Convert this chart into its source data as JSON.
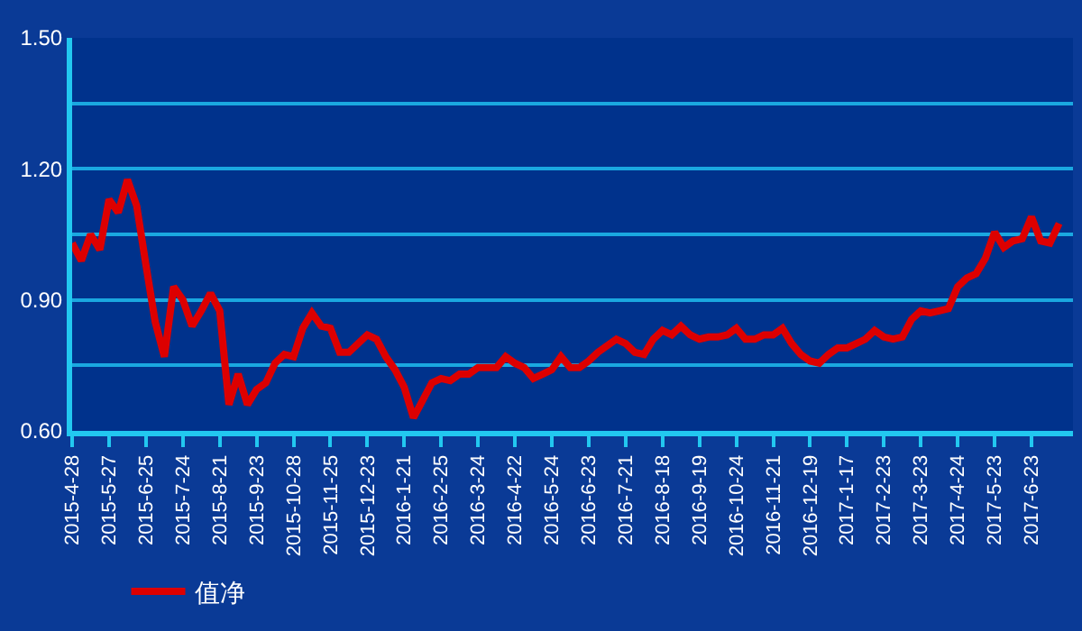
{
  "chart_data": {
    "type": "line",
    "categories": [
      "2015-4-28",
      null,
      null,
      null,
      "2015-5-27",
      null,
      null,
      null,
      "2015-6-25",
      null,
      null,
      null,
      "2015-7-24",
      null,
      null,
      null,
      "2015-8-21",
      null,
      null,
      null,
      "2015-9-23",
      null,
      null,
      null,
      "2015-10-28",
      null,
      null,
      null,
      "2015-11-25",
      null,
      null,
      null,
      "2015-12-23",
      null,
      null,
      null,
      "2016-1-21",
      null,
      null,
      null,
      "2016-2-25",
      null,
      null,
      null,
      "2016-3-24",
      null,
      null,
      null,
      "2016-4-22",
      null,
      null,
      null,
      "2016-5-24",
      null,
      null,
      null,
      "2016-6-23",
      null,
      null,
      null,
      "2016-7-21",
      null,
      null,
      null,
      "2016-8-18",
      null,
      null,
      null,
      "2016-9-19",
      null,
      null,
      null,
      "2016-10-24",
      null,
      null,
      null,
      "2016-11-21",
      null,
      null,
      null,
      "2016-12-19",
      null,
      null,
      null,
      "2017-1-17",
      null,
      null,
      null,
      "2017-2-23",
      null,
      null,
      null,
      "2017-3-23",
      null,
      null,
      null,
      "2017-4-24",
      null,
      null,
      null,
      "2017-5-23",
      null,
      null,
      null,
      "2017-6-23",
      null,
      null,
      null
    ],
    "series": [
      {
        "name": "值净",
        "color": "#dd0000",
        "values": [
          1.03,
          0.99,
          1.05,
          1.015,
          1.13,
          1.1,
          1.175,
          1.115,
          0.98,
          0.85,
          0.77,
          0.93,
          0.9,
          0.84,
          0.875,
          0.915,
          0.875,
          0.66,
          0.73,
          0.66,
          0.695,
          0.71,
          0.755,
          0.775,
          0.77,
          0.835,
          0.87,
          0.84,
          0.835,
          0.78,
          0.78,
          0.8,
          0.82,
          0.81,
          0.77,
          0.74,
          0.7,
          0.63,
          0.67,
          0.71,
          0.72,
          0.715,
          0.73,
          0.73,
          0.745,
          0.745,
          0.745,
          0.77,
          0.755,
          0.745,
          0.72,
          0.73,
          0.74,
          0.77,
          0.745,
          0.745,
          0.76,
          0.78,
          0.795,
          0.81,
          0.8,
          0.78,
          0.775,
          0.81,
          0.83,
          0.82,
          0.84,
          0.82,
          0.81,
          0.815,
          0.815,
          0.82,
          0.835,
          0.81,
          0.81,
          0.82,
          0.82,
          0.835,
          0.8,
          0.775,
          0.76,
          0.755,
          0.775,
          0.79,
          0.79,
          0.8,
          0.81,
          0.83,
          0.815,
          0.81,
          0.815,
          0.855,
          0.875,
          0.87,
          0.875,
          0.88,
          0.93,
          0.95,
          0.96,
          0.995,
          1.055,
          1.02,
          1.035,
          1.04,
          1.09,
          1.035,
          1.03,
          1.075
        ]
      }
    ],
    "ylim": [
      0.6,
      1.5
    ],
    "yticks": [
      {
        "value": 0.6,
        "label": "0.60"
      },
      {
        "value": 0.75,
        "label": null
      },
      {
        "value": 0.9,
        "label": "0.90"
      },
      {
        "value": 1.05,
        "label": null
      },
      {
        "value": 1.2,
        "label": "1.20"
      },
      {
        "value": 1.35,
        "label": null
      },
      {
        "value": 1.5,
        "label": "1.50"
      }
    ],
    "grid": "y",
    "legend": "bottom left",
    "marker": "none",
    "line_style": "solid"
  }
}
